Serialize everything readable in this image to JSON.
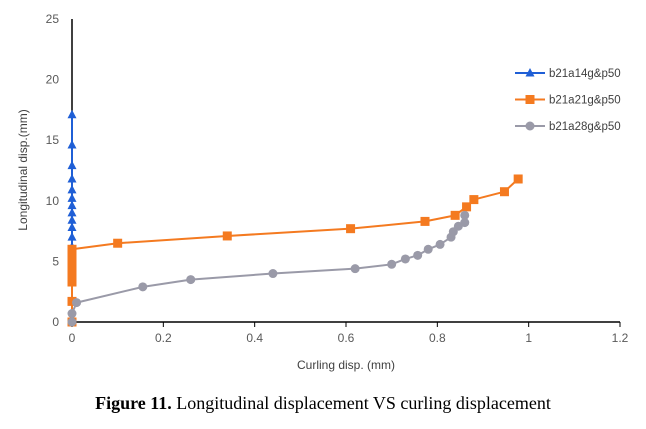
{
  "chart_data": {
    "type": "scatter",
    "xlabel": "Curling disp. (mm)",
    "ylabel": "Longitudinal disp.(mm)",
    "xlim": [
      0,
      1.2
    ],
    "ylim": [
      0,
      25
    ],
    "xticks": [
      "0",
      "0.2",
      "0.4",
      "0.6",
      "0.8",
      "1",
      "1.2"
    ],
    "yticks": [
      "0",
      "5",
      "10",
      "15",
      "20",
      "25"
    ],
    "grid": false,
    "legend_position": "right",
    "series": [
      {
        "name": "b21a14g&p50",
        "color": "#1f5fd6",
        "marker": "triangle",
        "x": [
          0,
          0,
          0,
          0,
          0,
          0,
          0,
          0,
          0,
          0,
          0,
          0
        ],
        "y": [
          6.2,
          7.0,
          7.8,
          8.4,
          9.0,
          9.6,
          10.2,
          10.9,
          11.8,
          12.9,
          14.6,
          17.1
        ]
      },
      {
        "name": "b21a21g&p50",
        "color": "#f47a20",
        "marker": "square",
        "x": [
          0,
          0,
          0,
          0,
          0,
          0,
          0,
          0,
          0.1,
          0.34,
          0.61,
          0.773,
          0.839,
          0.864,
          0.88,
          0.947,
          0.977
        ],
        "y": [
          0,
          1.7,
          3.3,
          4.0,
          4.5,
          5.0,
          5.5,
          6.0,
          6.5,
          7.1,
          7.7,
          8.3,
          8.8,
          9.5,
          10.1,
          10.75,
          11.8
        ]
      },
      {
        "name": "b21a28g&p50",
        "color": "#9a9aa8",
        "marker": "circle",
        "x": [
          0,
          0,
          0.01,
          0.155,
          0.26,
          0.44,
          0.62,
          0.7,
          0.73,
          0.757,
          0.78,
          0.806,
          0.83,
          0.835,
          0.846,
          0.86,
          0.86
        ],
        "y": [
          0,
          0.7,
          1.6,
          2.9,
          3.5,
          4.0,
          4.4,
          4.76,
          5.2,
          5.5,
          6.0,
          6.4,
          7.0,
          7.45,
          7.9,
          8.2,
          8.8
        ]
      }
    ]
  },
  "caption": {
    "label": "Figure 11.",
    "text": " Longitudinal displacement VS curling displacement"
  }
}
